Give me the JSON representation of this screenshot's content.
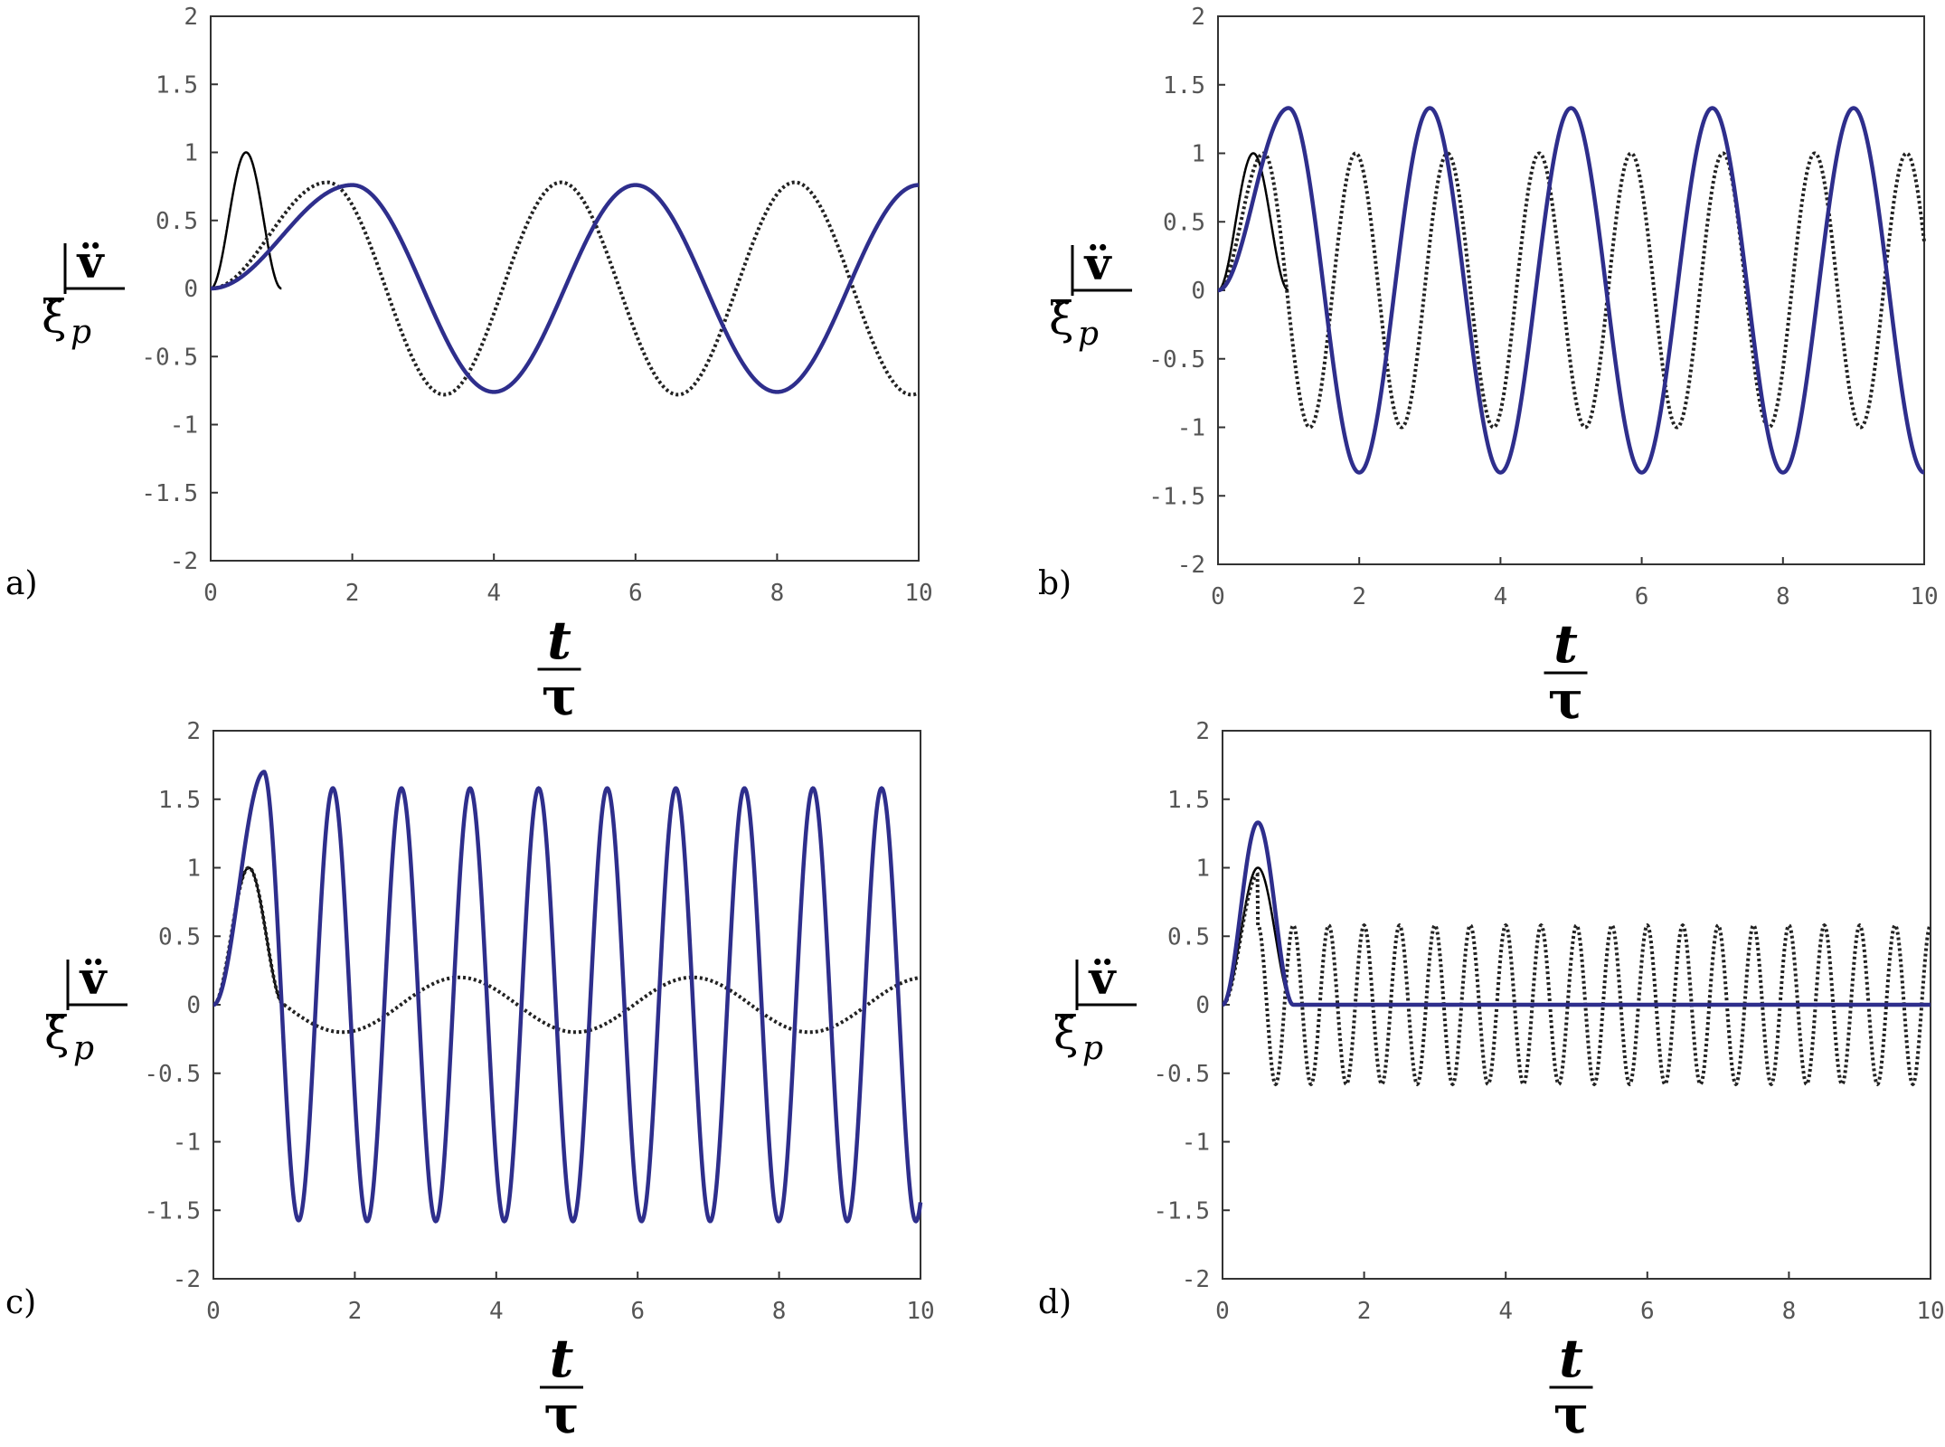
{
  "colors": {
    "pulse": "#000000",
    "dotted_response": "#222222",
    "blue_response": "#2e2e8c",
    "frame": "#333333",
    "tick_text": "#555555"
  },
  "axis_labels": {
    "y_top": "v̈",
    "y_bottom": "ξ̈",
    "y_sub": "p",
    "x_top": "t",
    "x_bottom": "τ"
  },
  "chart_data": [
    {
      "panel": "a)",
      "type": "line",
      "xlim": [
        0,
        10
      ],
      "ylim": [
        -2,
        2
      ],
      "x_ticks": [
        "0",
        "2",
        "4",
        "6",
        "8",
        "10"
      ],
      "y_ticks": [
        "2",
        "1.5",
        "1",
        "0.5",
        "0",
        "-0.5",
        "-1",
        "-1.5",
        "-2"
      ],
      "series": [
        {
          "style": "pulse",
          "description_of_shape": "half-sine squared pulse",
          "t_end": 1.0,
          "peak": 1.0
        },
        {
          "style": "dotted",
          "amplitude": 0.78,
          "period": 3.3,
          "start": 0
        },
        {
          "style": "blue",
          "amplitude": 0.76,
          "period": 4.0,
          "start": 0
        }
      ]
    },
    {
      "panel": "b)",
      "type": "line",
      "xlim": [
        0,
        10
      ],
      "ylim": [
        -2,
        2
      ],
      "x_ticks": [
        "0",
        "2",
        "4",
        "6",
        "8",
        "10"
      ],
      "y_ticks": [
        "2",
        "1.5",
        "1",
        "0.5",
        "0",
        "-0.5",
        "-1",
        "-1.5",
        "-2"
      ],
      "series": [
        {
          "style": "pulse",
          "t_end": 1.0,
          "peak": 1.0
        },
        {
          "style": "dotted",
          "amplitude": 1.0,
          "period": 1.3,
          "start": 0
        },
        {
          "style": "blue",
          "amplitude": 1.33,
          "period": 2.0,
          "start": 0
        }
      ]
    },
    {
      "panel": "c)",
      "type": "line",
      "xlim": [
        0,
        10
      ],
      "ylim": [
        -2,
        2
      ],
      "x_ticks": [
        "0",
        "2",
        "4",
        "6",
        "8",
        "10"
      ],
      "y_ticks": [
        "2",
        "1.5",
        "1",
        "0.5",
        "0",
        "-0.5",
        "-1",
        "-1.5",
        "-2"
      ],
      "series": [
        {
          "style": "pulse",
          "t_end": 1.0,
          "peak": 1.0
        },
        {
          "style": "dotted",
          "amplitude": 0.2,
          "period": 3.3,
          "start": 1.0,
          "pre_peak": 1.0
        },
        {
          "style": "blue",
          "amplitude": 1.58,
          "period": 0.97,
          "start": 0,
          "first_peak": 1.7
        }
      ]
    },
    {
      "panel": "d)",
      "type": "line",
      "xlim": [
        0,
        10
      ],
      "ylim": [
        -2,
        2
      ],
      "x_ticks": [
        "0",
        "2",
        "4",
        "6",
        "8",
        "10"
      ],
      "y_ticks": [
        "2",
        "1.5",
        "1",
        "0.5",
        "0",
        "-0.5",
        "-1",
        "-1.5",
        "-2"
      ],
      "series": [
        {
          "style": "pulse",
          "t_end": 1.0,
          "peak": 1.0
        },
        {
          "style": "dotted",
          "amplitude": 0.58,
          "period": 0.5,
          "start": 0
        },
        {
          "style": "blue",
          "amplitude": 1.33,
          "t_end": 1.0,
          "after": 0
        }
      ]
    }
  ]
}
